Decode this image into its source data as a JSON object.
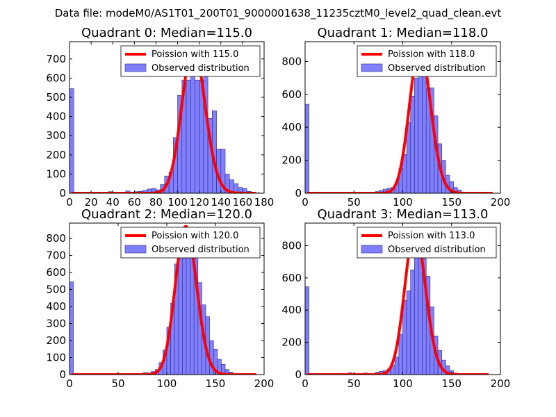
{
  "figure_title": "Data file: modeM0/AS1T01_200T01_9000001638_11235cztM0_level2_quad_clean.evt",
  "chart_data": [
    {
      "type": "bar",
      "title": "Quadrant 0: Median=115.0",
      "xlim": [
        0,
        180
      ],
      "ylim": [
        0,
        790
      ],
      "xticks": [
        0,
        20,
        40,
        60,
        80,
        100,
        120,
        140,
        160,
        180
      ],
      "yticks": [
        0,
        100,
        200,
        300,
        400,
        500,
        600,
        700
      ],
      "legend": [
        "Poission with 115.0",
        "Observed distribution"
      ],
      "bin_width": 4,
      "bins": [
        [
          0,
          545
        ],
        [
          4,
          5
        ],
        [
          8,
          5
        ],
        [
          12,
          5
        ],
        [
          20,
          5
        ],
        [
          28,
          5
        ],
        [
          36,
          8
        ],
        [
          44,
          5
        ],
        [
          52,
          12
        ],
        [
          60,
          8
        ],
        [
          64,
          10
        ],
        [
          68,
          15
        ],
        [
          72,
          22
        ],
        [
          76,
          25
        ],
        [
          80,
          18
        ],
        [
          84,
          45
        ],
        [
          88,
          90
        ],
        [
          92,
          110
        ],
        [
          96,
          290
        ],
        [
          100,
          510
        ],
        [
          104,
          590
        ],
        [
          108,
          590
        ],
        [
          112,
          630
        ],
        [
          116,
          590
        ],
        [
          120,
          590
        ],
        [
          124,
          630
        ],
        [
          128,
          390
        ],
        [
          132,
          430
        ],
        [
          136,
          230
        ],
        [
          140,
          230
        ],
        [
          144,
          100
        ],
        [
          148,
          70
        ],
        [
          152,
          50
        ],
        [
          156,
          30
        ],
        [
          160,
          25
        ],
        [
          164,
          10
        ],
        [
          168,
          5
        ],
        [
          172,
          2
        ]
      ],
      "poisson_mean": 115.0,
      "poisson_peak": 762,
      "curve_range": [
        2,
        172
      ]
    },
    {
      "type": "bar",
      "title": "Quadrant 1: Median=118.0",
      "xlim": [
        0,
        200
      ],
      "ylim": [
        0,
        920
      ],
      "xticks": [
        0,
        50,
        100,
        150,
        200
      ],
      "yticks": [
        0,
        200,
        400,
        600,
        800
      ],
      "legend": [
        "Poission with 118.0",
        "Observed distribution"
      ],
      "bin_width": 4,
      "bins": [
        [
          0,
          540
        ],
        [
          4,
          5
        ],
        [
          40,
          5
        ],
        [
          56,
          5
        ],
        [
          68,
          5
        ],
        [
          72,
          10
        ],
        [
          76,
          18
        ],
        [
          80,
          25
        ],
        [
          84,
          30
        ],
        [
          88,
          35
        ],
        [
          92,
          65
        ],
        [
          96,
          150
        ],
        [
          100,
          235
        ],
        [
          104,
          430
        ],
        [
          108,
          590
        ],
        [
          112,
          700
        ],
        [
          116,
          790
        ],
        [
          120,
          870
        ],
        [
          124,
          640
        ],
        [
          128,
          640
        ],
        [
          132,
          470
        ],
        [
          136,
          300
        ],
        [
          140,
          200
        ],
        [
          144,
          110
        ],
        [
          148,
          70
        ],
        [
          152,
          35
        ],
        [
          156,
          20
        ],
        [
          160,
          5
        ]
      ],
      "poisson_mean": 118.0,
      "poisson_peak": 880,
      "curve_range": [
        2,
        192
      ]
    },
    {
      "type": "bar",
      "title": "Quadrant 2: Median=120.0",
      "xlim": [
        0,
        200
      ],
      "ylim": [
        0,
        890
      ],
      "xticks": [
        0,
        50,
        100,
        150,
        200
      ],
      "yticks": [
        0,
        100,
        200,
        300,
        400,
        500,
        600,
        700,
        800
      ],
      "legend": [
        "Poission with 120.0",
        "Observed distribution"
      ],
      "bin_width": 4,
      "bins": [
        [
          0,
          545
        ],
        [
          4,
          5
        ],
        [
          72,
          5
        ],
        [
          76,
          12
        ],
        [
          80,
          10
        ],
        [
          84,
          18
        ],
        [
          88,
          30
        ],
        [
          92,
          70
        ],
        [
          96,
          145
        ],
        [
          100,
          280
        ],
        [
          104,
          420
        ],
        [
          108,
          650
        ],
        [
          112,
          680
        ],
        [
          116,
          780
        ],
        [
          120,
          830
        ],
        [
          124,
          720
        ],
        [
          128,
          730
        ],
        [
          132,
          540
        ],
        [
          136,
          410
        ],
        [
          140,
          340
        ],
        [
          144,
          200
        ],
        [
          148,
          150
        ],
        [
          152,
          90
        ],
        [
          156,
          60
        ],
        [
          160,
          30
        ],
        [
          164,
          15
        ],
        [
          168,
          5
        ]
      ],
      "poisson_mean": 120.0,
      "poisson_peak": 870,
      "curve_range": [
        2,
        192
      ]
    },
    {
      "type": "bar",
      "title": "Quadrant 3: Median=113.0",
      "xlim": [
        0,
        200
      ],
      "ylim": [
        0,
        940
      ],
      "xticks": [
        0,
        50,
        100,
        150,
        200
      ],
      "yticks": [
        0,
        200,
        400,
        600,
        800
      ],
      "legend": [
        "Poission with 113.0",
        "Observed distribution"
      ],
      "bin_width": 4,
      "bins": [
        [
          0,
          545
        ],
        [
          4,
          5
        ],
        [
          28,
          5
        ],
        [
          36,
          5
        ],
        [
          44,
          12
        ],
        [
          52,
          8
        ],
        [
          60,
          10
        ],
        [
          72,
          15
        ],
        [
          76,
          20
        ],
        [
          80,
          25
        ],
        [
          84,
          35
        ],
        [
          88,
          60
        ],
        [
          92,
          110
        ],
        [
          96,
          250
        ],
        [
          100,
          460
        ],
        [
          104,
          520
        ],
        [
          108,
          650
        ],
        [
          112,
          770
        ],
        [
          116,
          830
        ],
        [
          120,
          720
        ],
        [
          124,
          610
        ],
        [
          128,
          420
        ],
        [
          132,
          240
        ],
        [
          136,
          150
        ],
        [
          140,
          90
        ],
        [
          144,
          55
        ],
        [
          148,
          25
        ],
        [
          152,
          10
        ]
      ],
      "poisson_mean": 113.0,
      "poisson_peak": 895,
      "curve_range": [
        2,
        188
      ]
    }
  ]
}
